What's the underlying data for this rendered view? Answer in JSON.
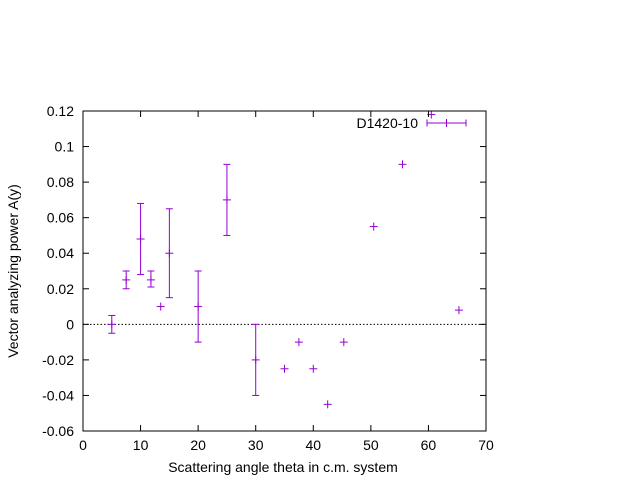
{
  "chart_data": {
    "type": "scatter",
    "title": "",
    "xlabel": "Scattering angle theta in c.m. system",
    "ylabel": "Vector analyzing power A(y)",
    "xlim": [
      0,
      70
    ],
    "ylim": [
      -0.06,
      0.12
    ],
    "x_ticks": [
      0,
      10,
      20,
      30,
      40,
      50,
      60,
      70
    ],
    "y_ticks": [
      -0.06,
      -0.04,
      -0.02,
      0,
      0.02,
      0.04,
      0.06,
      0.08,
      0.1,
      0.12
    ],
    "x_tick_labels": [
      "0",
      "10",
      "20",
      "30",
      "40",
      "50",
      "60",
      "70"
    ],
    "y_tick_labels": [
      "-0.06",
      "-0.04",
      "-0.02",
      "0",
      "0.02",
      "0.04",
      "0.06",
      "0.08",
      "0.1",
      "0.12"
    ],
    "zero_line": true,
    "grid": false,
    "legend_position": "top-right",
    "colors": {
      "series": "#9400d3",
      "axis": "#000000",
      "zero_line": "#000000"
    },
    "series": [
      {
        "name": "D1420-10",
        "points": [
          {
            "x": 5.0,
            "y": 0.0,
            "yerr_low": 0.005,
            "yerr_high": 0.005
          },
          {
            "x": 7.5,
            "y": 0.025,
            "yerr_low": 0.005,
            "yerr_high": 0.005
          },
          {
            "x": 10.0,
            "y": 0.048,
            "yerr_low": 0.02,
            "yerr_high": 0.02
          },
          {
            "x": 11.8,
            "y": 0.025,
            "yerr_low": 0.004,
            "yerr_high": 0.005
          },
          {
            "x": 13.5,
            "y": 0.01,
            "yerr_low": 0.0,
            "yerr_high": 0.0
          },
          {
            "x": 15.0,
            "y": 0.04,
            "yerr_low": 0.025,
            "yerr_high": 0.025
          },
          {
            "x": 20.0,
            "y": 0.01,
            "yerr_low": 0.02,
            "yerr_high": 0.02
          },
          {
            "x": 25.0,
            "y": 0.07,
            "yerr_low": 0.02,
            "yerr_high": 0.02
          },
          {
            "x": 30.0,
            "y": -0.02,
            "yerr_low": 0.02,
            "yerr_high": 0.02
          },
          {
            "x": 35.0,
            "y": -0.025,
            "yerr_low": 0.0,
            "yerr_high": 0.0
          },
          {
            "x": 37.5,
            "y": -0.01,
            "yerr_low": 0.0,
            "yerr_high": 0.0
          },
          {
            "x": 40.0,
            "y": -0.025,
            "yerr_low": 0.0,
            "yerr_high": 0.0
          },
          {
            "x": 42.5,
            "y": -0.045,
            "yerr_low": 0.0,
            "yerr_high": 0.0
          },
          {
            "x": 45.3,
            "y": -0.01,
            "yerr_low": 0.0,
            "yerr_high": 0.0
          },
          {
            "x": 50.5,
            "y": 0.055,
            "yerr_low": 0.0,
            "yerr_high": 0.0
          },
          {
            "x": 55.5,
            "y": 0.09,
            "yerr_low": 0.0,
            "yerr_high": 0.0
          },
          {
            "x": 60.5,
            "y": 0.118,
            "yerr_low": 0.0,
            "yerr_high": 0.0
          },
          {
            "x": 65.3,
            "y": 0.008,
            "yerr_low": 0.0,
            "yerr_high": 0.0
          }
        ]
      }
    ]
  }
}
